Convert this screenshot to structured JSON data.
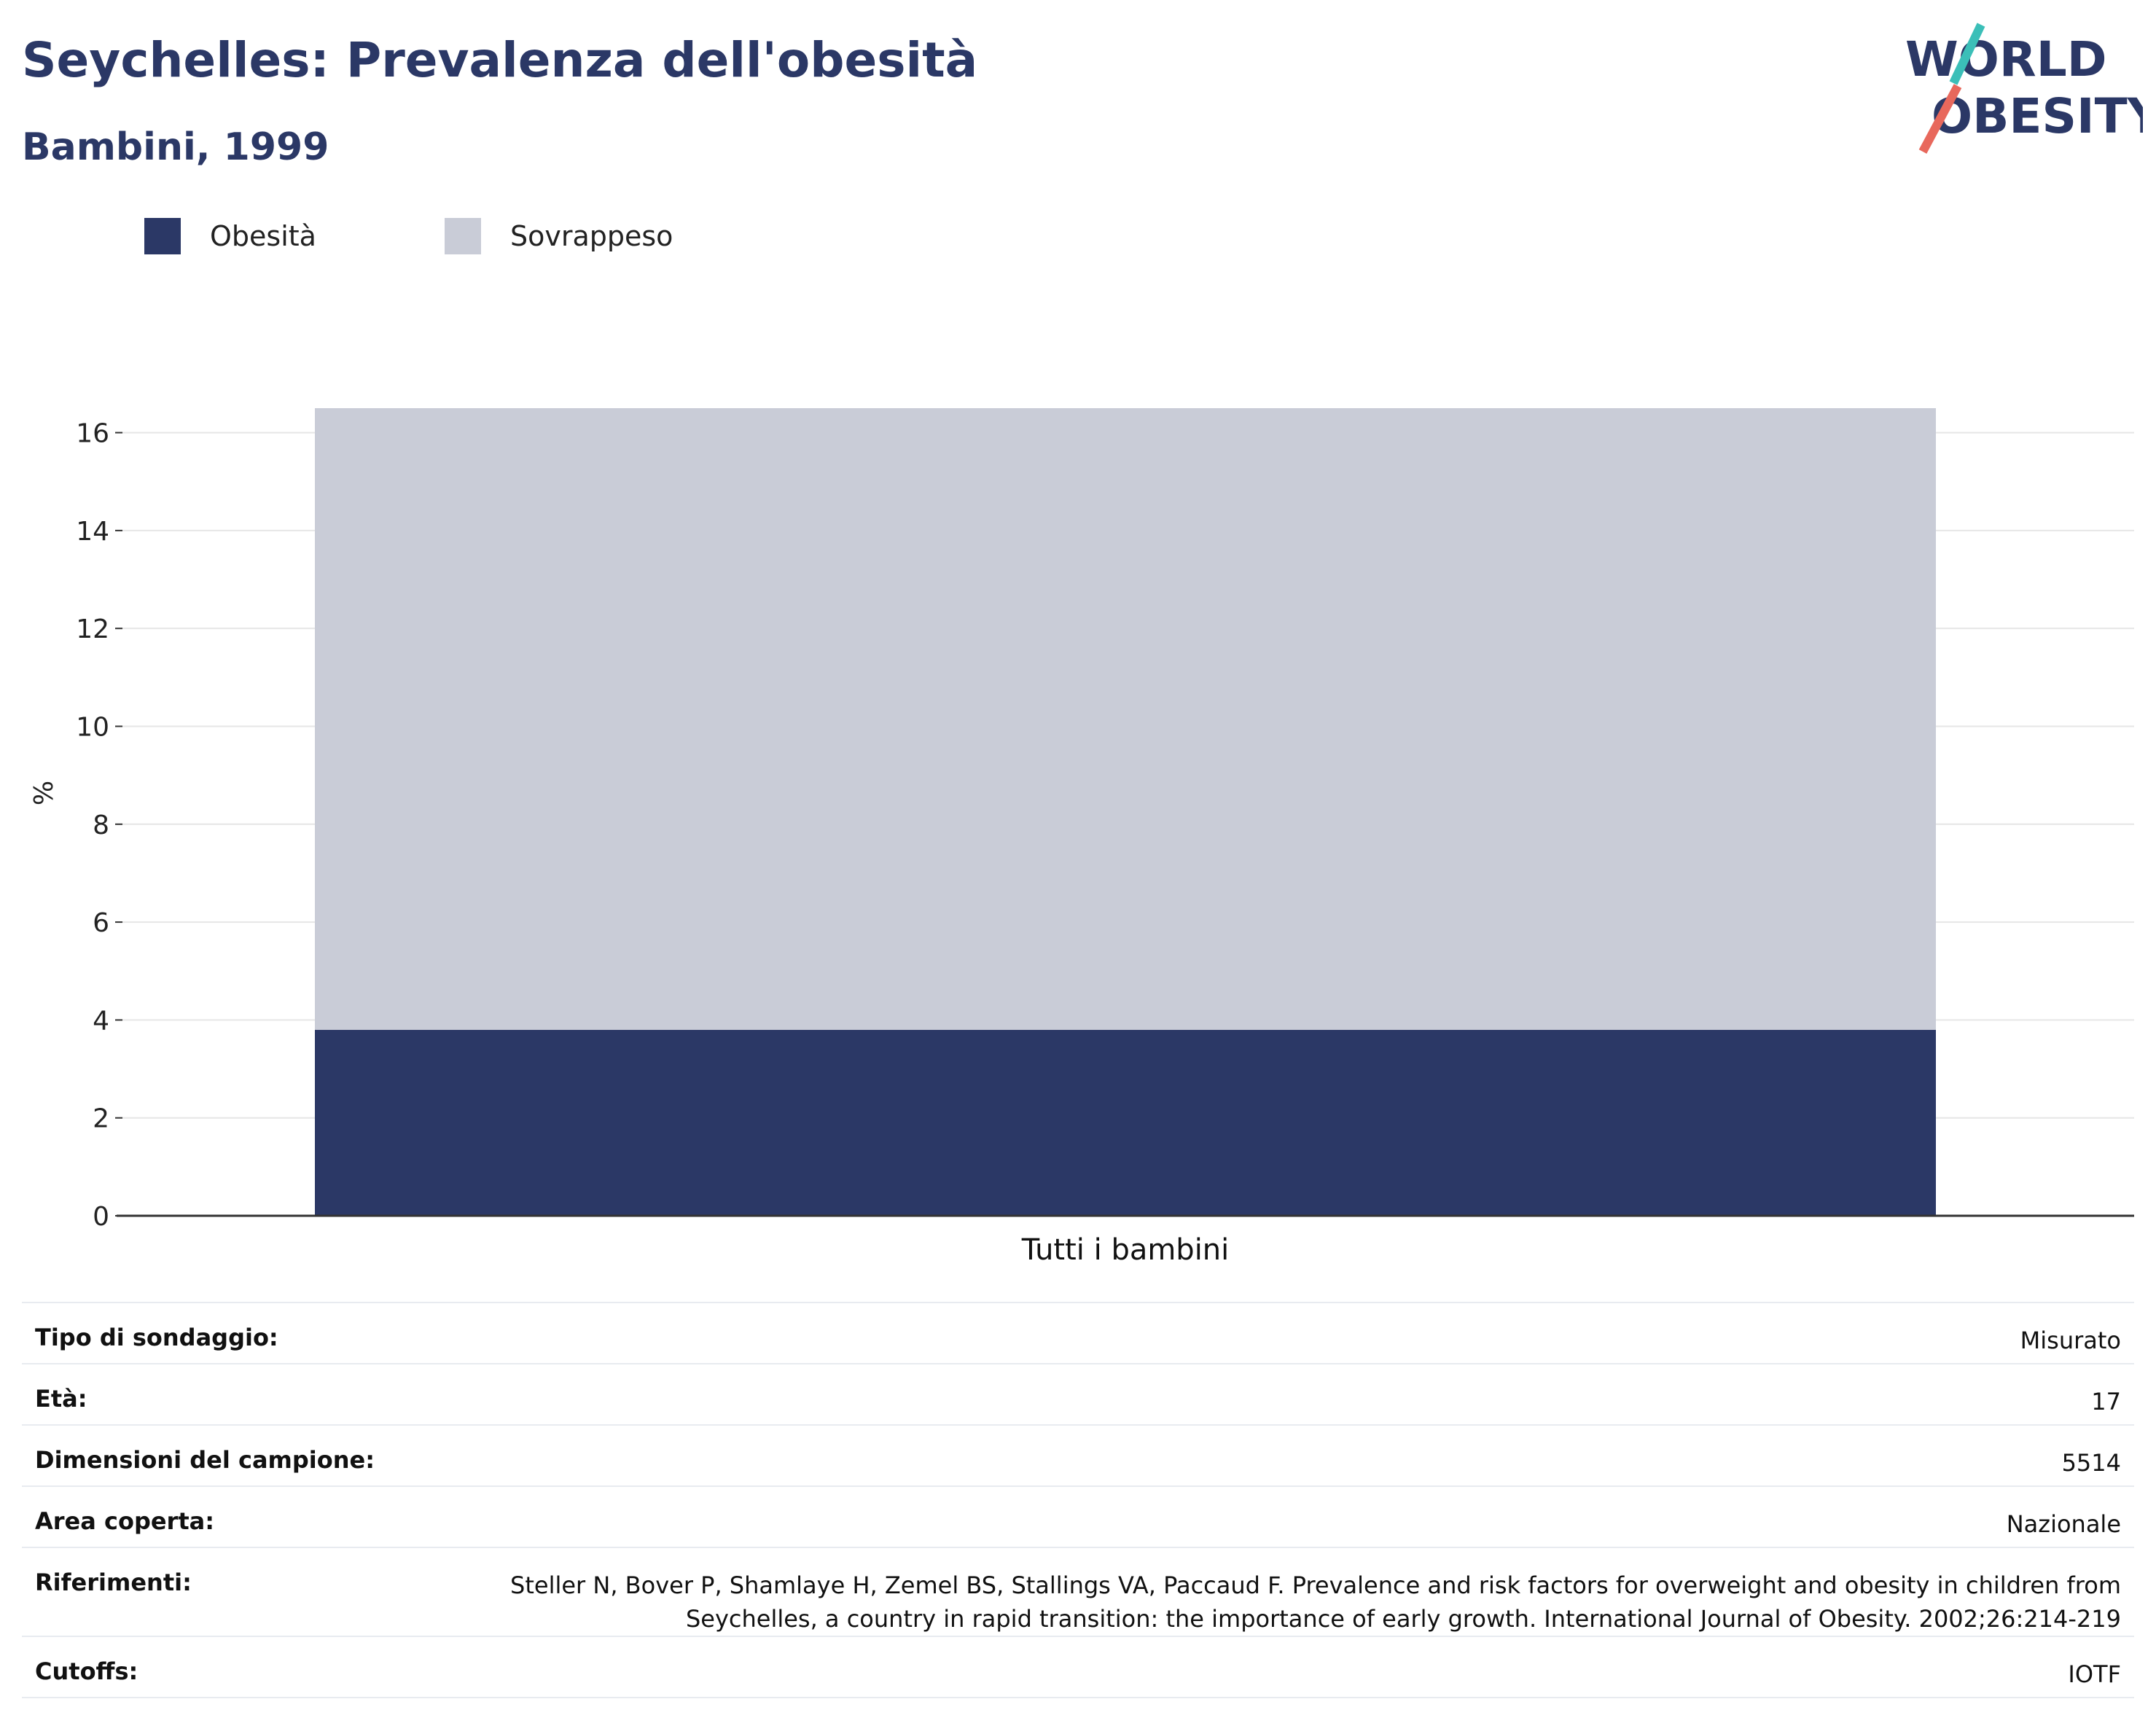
{
  "header": {
    "title": "Seychelles: Prevalenza dell'obesità",
    "subtitle": "Bambini, 1999"
  },
  "logo": {
    "line1": "WORLD",
    "line2": "OBESITY",
    "accent_teal": "#3bbfb8",
    "accent_coral": "#e8685c"
  },
  "legend": [
    {
      "label": "Obesità",
      "color": "#2b3866"
    },
    {
      "label": "Sovrappeso",
      "color": "#c9ccd7"
    }
  ],
  "chart_data": {
    "type": "bar",
    "stacked": true,
    "categories": [
      "Tutti i bambini"
    ],
    "series": [
      {
        "name": "Obesità",
        "values": [
          3.8
        ],
        "color": "#2b3866"
      },
      {
        "name": "Sovrappeso",
        "values": [
          12.7
        ],
        "color": "#c9ccd7"
      }
    ],
    "ylabel": "%",
    "ylim": [
      0,
      16.5
    ],
    "yticks": [
      0,
      2,
      4,
      6,
      8,
      10,
      12,
      14,
      16
    ],
    "grid": true,
    "legend_position": "top-left"
  },
  "info": [
    {
      "key": "Tipo di sondaggio:",
      "value": "Misurato"
    },
    {
      "key": "Età:",
      "value": "17"
    },
    {
      "key": "Dimensioni del campione:",
      "value": "5514"
    },
    {
      "key": "Area coperta:",
      "value": "Nazionale"
    },
    {
      "key": "Riferimenti:",
      "value": "Steller N, Bover P, Shamlaye H, Zemel BS, Stallings VA, Paccaud F. Prevalence and risk factors for overweight and obesity in children from Seychelles, a country in rapid transition: the importance of early growth. International Journal of Obesity. 2002;26:214-219"
    },
    {
      "key": "Cutoffs:",
      "value": "IOTF"
    }
  ]
}
